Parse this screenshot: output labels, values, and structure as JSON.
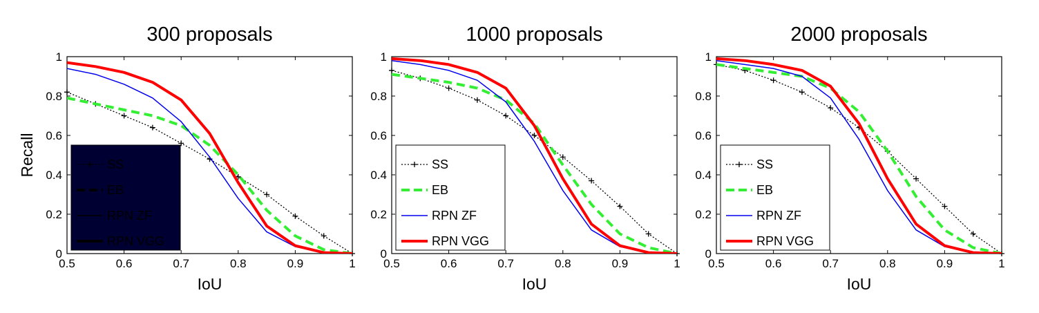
{
  "colors": {
    "SS": "#000000",
    "EB": "#33ee33",
    "RPN ZF": "#0000ee",
    "RPN VGG": "#ff0000",
    "legend_dark_bg": "#000033"
  },
  "chart_data": [
    {
      "type": "line",
      "title": "300 proposals",
      "xlabel": "IoU",
      "ylabel": "Recall",
      "xlim": [
        0.5,
        1
      ],
      "ylim": [
        0,
        1
      ],
      "xticks": [
        "0.5",
        "0.6",
        "0.7",
        "0.8",
        "0.9",
        "1"
      ],
      "yticks": [
        "0",
        "0.2",
        "0.4",
        "0.6",
        "0.8",
        "1"
      ],
      "grid": false,
      "legend_position": "lower-left",
      "legend_style": "dark",
      "x": [
        0.5,
        0.55,
        0.6,
        0.65,
        0.7,
        0.75,
        0.8,
        0.85,
        0.9,
        0.95,
        1.0
      ],
      "series": [
        {
          "name": "SS",
          "style": "dotted-plus",
          "values": [
            0.82,
            0.76,
            0.7,
            0.64,
            0.56,
            0.48,
            0.39,
            0.3,
            0.19,
            0.09,
            0.0
          ]
        },
        {
          "name": "EB",
          "style": "dashed",
          "values": [
            0.79,
            0.76,
            0.73,
            0.7,
            0.65,
            0.55,
            0.4,
            0.22,
            0.09,
            0.02,
            0.0
          ]
        },
        {
          "name": "RPN ZF",
          "style": "solid-thin",
          "values": [
            0.94,
            0.91,
            0.86,
            0.79,
            0.67,
            0.49,
            0.28,
            0.11,
            0.035,
            0.005,
            0.0
          ]
        },
        {
          "name": "RPN VGG",
          "style": "solid-thick",
          "values": [
            0.97,
            0.95,
            0.92,
            0.87,
            0.78,
            0.61,
            0.36,
            0.14,
            0.04,
            0.005,
            0.0
          ]
        }
      ]
    },
    {
      "type": "line",
      "title": "1000 proposals",
      "xlabel": "IoU",
      "ylabel": "",
      "xlim": [
        0.5,
        1
      ],
      "ylim": [
        0,
        1
      ],
      "xticks": [
        "0.5",
        "0.6",
        "0.7",
        "0.8",
        "0.9",
        "1"
      ],
      "yticks": [
        "0",
        "0.2",
        "0.4",
        "0.6",
        "0.8",
        "1"
      ],
      "grid": false,
      "legend_position": "lower-left",
      "legend_style": "light",
      "x": [
        0.5,
        0.55,
        0.6,
        0.65,
        0.7,
        0.75,
        0.8,
        0.85,
        0.9,
        0.95,
        1.0
      ],
      "series": [
        {
          "name": "SS",
          "style": "dotted-plus",
          "values": [
            0.93,
            0.89,
            0.84,
            0.78,
            0.7,
            0.6,
            0.49,
            0.37,
            0.24,
            0.1,
            0.0
          ]
        },
        {
          "name": "EB",
          "style": "dashed",
          "values": [
            0.91,
            0.89,
            0.87,
            0.84,
            0.78,
            0.66,
            0.45,
            0.25,
            0.1,
            0.03,
            0.0
          ]
        },
        {
          "name": "RPN ZF",
          "style": "solid-thin",
          "values": [
            0.98,
            0.96,
            0.93,
            0.88,
            0.77,
            0.57,
            0.32,
            0.12,
            0.035,
            0.005,
            0.0
          ]
        },
        {
          "name": "RPN VGG",
          "style": "solid-thick",
          "values": [
            0.99,
            0.98,
            0.96,
            0.92,
            0.84,
            0.65,
            0.38,
            0.15,
            0.04,
            0.005,
            0.0
          ]
        }
      ]
    },
    {
      "type": "line",
      "title": "2000 proposals",
      "xlabel": "IoU",
      "ylabel": "",
      "xlim": [
        0.5,
        1
      ],
      "ylim": [
        0,
        1
      ],
      "xticks": [
        "0.5",
        "0.6",
        "0.7",
        "0.8",
        "0.9",
        "1"
      ],
      "yticks": [
        "0",
        "0.2",
        "0.4",
        "0.6",
        "0.8",
        "1"
      ],
      "grid": false,
      "legend_position": "lower-left",
      "legend_style": "light",
      "x": [
        0.5,
        0.55,
        0.6,
        0.65,
        0.7,
        0.75,
        0.8,
        0.85,
        0.9,
        0.95,
        1.0
      ],
      "series": [
        {
          "name": "SS",
          "style": "dotted-plus",
          "values": [
            0.96,
            0.93,
            0.88,
            0.82,
            0.74,
            0.64,
            0.52,
            0.38,
            0.24,
            0.1,
            0.0
          ]
        },
        {
          "name": "EB",
          "style": "dashed",
          "values": [
            0.96,
            0.94,
            0.92,
            0.9,
            0.84,
            0.72,
            0.52,
            0.29,
            0.12,
            0.03,
            0.0
          ]
        },
        {
          "name": "RPN ZF",
          "style": "solid-thin",
          "values": [
            0.98,
            0.96,
            0.94,
            0.9,
            0.79,
            0.58,
            0.32,
            0.12,
            0.035,
            0.005,
            0.0
          ]
        },
        {
          "name": "RPN VGG",
          "style": "solid-thick",
          "values": [
            0.99,
            0.98,
            0.96,
            0.93,
            0.85,
            0.66,
            0.38,
            0.15,
            0.04,
            0.005,
            0.0
          ]
        }
      ]
    }
  ]
}
